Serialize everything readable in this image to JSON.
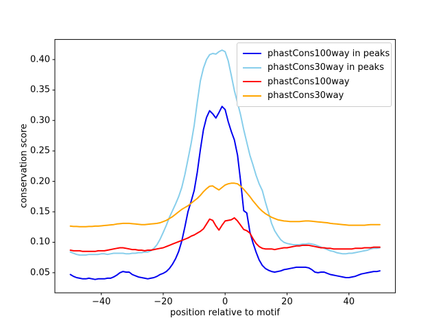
{
  "chart_data": {
    "type": "line",
    "title": "",
    "xlabel": "position relative to motif",
    "ylabel": "conservation score",
    "xlim": [
      -55,
      55
    ],
    "ylim": [
      0.017,
      0.433
    ],
    "grid": false,
    "legend_position": "upper right",
    "xticks": [
      {
        "v": -40,
        "label": "−40"
      },
      {
        "v": -20,
        "label": "−20"
      },
      {
        "v": 0,
        "label": "0"
      },
      {
        "v": 20,
        "label": "20"
      },
      {
        "v": 40,
        "label": "40"
      }
    ],
    "yticks": [
      {
        "v": 0.05,
        "label": "0.05"
      },
      {
        "v": 0.1,
        "label": "0.10"
      },
      {
        "v": 0.15,
        "label": "0.15"
      },
      {
        "v": 0.2,
        "label": "0.20"
      },
      {
        "v": 0.25,
        "label": "0.25"
      },
      {
        "v": 0.3,
        "label": "0.30"
      },
      {
        "v": 0.35,
        "label": "0.35"
      },
      {
        "v": 0.4,
        "label": "0.40"
      }
    ],
    "x_start": -50,
    "x_step": 1,
    "series": [
      {
        "name": "phastCons100way in peaks",
        "color": "#0000f0",
        "values": [
          0.047,
          0.044,
          0.042,
          0.041,
          0.04,
          0.04,
          0.041,
          0.04,
          0.039,
          0.04,
          0.04,
          0.04,
          0.041,
          0.041,
          0.043,
          0.046,
          0.05,
          0.052,
          0.051,
          0.051,
          0.047,
          0.045,
          0.043,
          0.042,
          0.041,
          0.04,
          0.041,
          0.042,
          0.044,
          0.047,
          0.049,
          0.052,
          0.057,
          0.064,
          0.073,
          0.085,
          0.102,
          0.125,
          0.15,
          0.167,
          0.185,
          0.215,
          0.252,
          0.285,
          0.305,
          0.316,
          0.311,
          0.304,
          0.313,
          0.323,
          0.318,
          0.298,
          0.282,
          0.268,
          0.243,
          0.2,
          0.152,
          0.148,
          0.117,
          0.099,
          0.084,
          0.071,
          0.062,
          0.057,
          0.054,
          0.052,
          0.051,
          0.052,
          0.053,
          0.055,
          0.056,
          0.057,
          0.058,
          0.059,
          0.059,
          0.059,
          0.059,
          0.058,
          0.055,
          0.051,
          0.05,
          0.051,
          0.051,
          0.049,
          0.047,
          0.046,
          0.045,
          0.044,
          0.043,
          0.042,
          0.042,
          0.043,
          0.044,
          0.046,
          0.048,
          0.049,
          0.05,
          0.051,
          0.052,
          0.052,
          0.053
        ]
      },
      {
        "name": "phastCons30way in peaks",
        "color": "#87ceeb",
        "values": [
          0.084,
          0.082,
          0.08,
          0.079,
          0.079,
          0.079,
          0.08,
          0.08,
          0.08,
          0.08,
          0.081,
          0.081,
          0.08,
          0.081,
          0.082,
          0.082,
          0.082,
          0.082,
          0.081,
          0.081,
          0.082,
          0.082,
          0.083,
          0.083,
          0.084,
          0.084,
          0.086,
          0.09,
          0.096,
          0.105,
          0.116,
          0.128,
          0.141,
          0.152,
          0.163,
          0.175,
          0.19,
          0.211,
          0.236,
          0.262,
          0.292,
          0.33,
          0.365,
          0.386,
          0.4,
          0.408,
          0.41,
          0.409,
          0.413,
          0.4155,
          0.413,
          0.398,
          0.374,
          0.349,
          0.329,
          0.309,
          0.285,
          0.264,
          0.243,
          0.227,
          0.21,
          0.196,
          0.185,
          0.166,
          0.149,
          0.131,
          0.119,
          0.111,
          0.104,
          0.1,
          0.098,
          0.097,
          0.096,
          0.096,
          0.096,
          0.097,
          0.097,
          0.098,
          0.097,
          0.096,
          0.094,
          0.092,
          0.09,
          0.088,
          0.086,
          0.085,
          0.083,
          0.082,
          0.081,
          0.081,
          0.082,
          0.082,
          0.083,
          0.084,
          0.085,
          0.086,
          0.087,
          0.089,
          0.09,
          0.09,
          0.091
        ]
      },
      {
        "name": "phastCons100way",
        "color": "#ff0000",
        "values": [
          0.087,
          0.086,
          0.086,
          0.086,
          0.085,
          0.085,
          0.085,
          0.085,
          0.085,
          0.086,
          0.086,
          0.086,
          0.087,
          0.088,
          0.089,
          0.09,
          0.091,
          0.091,
          0.09,
          0.089,
          0.088,
          0.088,
          0.087,
          0.087,
          0.086,
          0.087,
          0.087,
          0.088,
          0.089,
          0.09,
          0.091,
          0.093,
          0.095,
          0.097,
          0.099,
          0.101,
          0.103,
          0.105,
          0.107,
          0.11,
          0.112,
          0.115,
          0.118,
          0.122,
          0.13,
          0.138,
          0.136,
          0.127,
          0.12,
          0.128,
          0.135,
          0.136,
          0.137,
          0.14,
          0.135,
          0.128,
          0.121,
          0.119,
          0.115,
          0.106,
          0.098,
          0.093,
          0.09,
          0.089,
          0.089,
          0.089,
          0.088,
          0.089,
          0.09,
          0.091,
          0.091,
          0.092,
          0.093,
          0.094,
          0.094,
          0.095,
          0.095,
          0.095,
          0.094,
          0.093,
          0.092,
          0.091,
          0.091,
          0.09,
          0.09,
          0.089,
          0.089,
          0.089,
          0.089,
          0.089,
          0.089,
          0.089,
          0.09,
          0.09,
          0.09,
          0.091,
          0.091,
          0.091,
          0.092,
          0.092,
          0.092
        ]
      },
      {
        "name": "phastCons30way",
        "color": "#ffa500",
        "values": [
          0.1265,
          0.126,
          0.126,
          0.1255,
          0.1255,
          0.1255,
          0.126,
          0.126,
          0.1265,
          0.1265,
          0.127,
          0.1275,
          0.128,
          0.1285,
          0.129,
          0.13,
          0.1305,
          0.131,
          0.131,
          0.131,
          0.1305,
          0.13,
          0.1295,
          0.129,
          0.129,
          0.1295,
          0.13,
          0.1305,
          0.131,
          0.132,
          0.134,
          0.136,
          0.139,
          0.142,
          0.146,
          0.15,
          0.154,
          0.157,
          0.16,
          0.164,
          0.168,
          0.172,
          0.177,
          0.183,
          0.188,
          0.192,
          0.1925,
          0.189,
          0.186,
          0.19,
          0.194,
          0.196,
          0.197,
          0.197,
          0.196,
          0.192,
          0.187,
          0.181,
          0.175,
          0.168,
          0.162,
          0.156,
          0.151,
          0.147,
          0.144,
          0.141,
          0.139,
          0.137,
          0.136,
          0.135,
          0.1345,
          0.134,
          0.134,
          0.134,
          0.134,
          0.1345,
          0.135,
          0.135,
          0.1345,
          0.134,
          0.1335,
          0.133,
          0.1325,
          0.132,
          0.131,
          0.1305,
          0.13,
          0.1295,
          0.129,
          0.1285,
          0.128,
          0.128,
          0.128,
          0.128,
          0.128,
          0.128,
          0.1285,
          0.129,
          0.129,
          0.129,
          0.129
        ]
      }
    ]
  }
}
